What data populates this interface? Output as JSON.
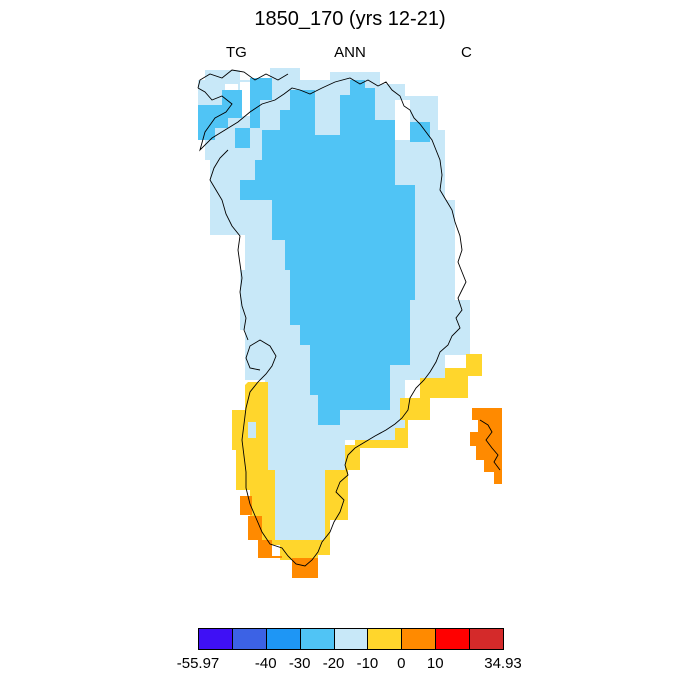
{
  "title": "1850_170 (yrs 12-21)",
  "labels": {
    "left": "TG",
    "center": "ANN",
    "right": "C"
  },
  "colorbar": {
    "colors": [
      "#3f10f5",
      "#3c62e5",
      "#1e96f5",
      "#50c4f5",
      "#c8e8f8",
      "#ffd62c",
      "#ff8a00",
      "#ff0000",
      "#d42a2a"
    ],
    "labels": [
      "-55.97",
      "-40",
      "-30",
      "-20",
      "-10",
      "0",
      "10",
      "34.93"
    ]
  },
  "legend_colors": {
    "light_blue": "#c8e8f8",
    "mid_blue": "#50c4f5",
    "yellow": "#ffd62c",
    "orange": "#ff8a00"
  }
}
